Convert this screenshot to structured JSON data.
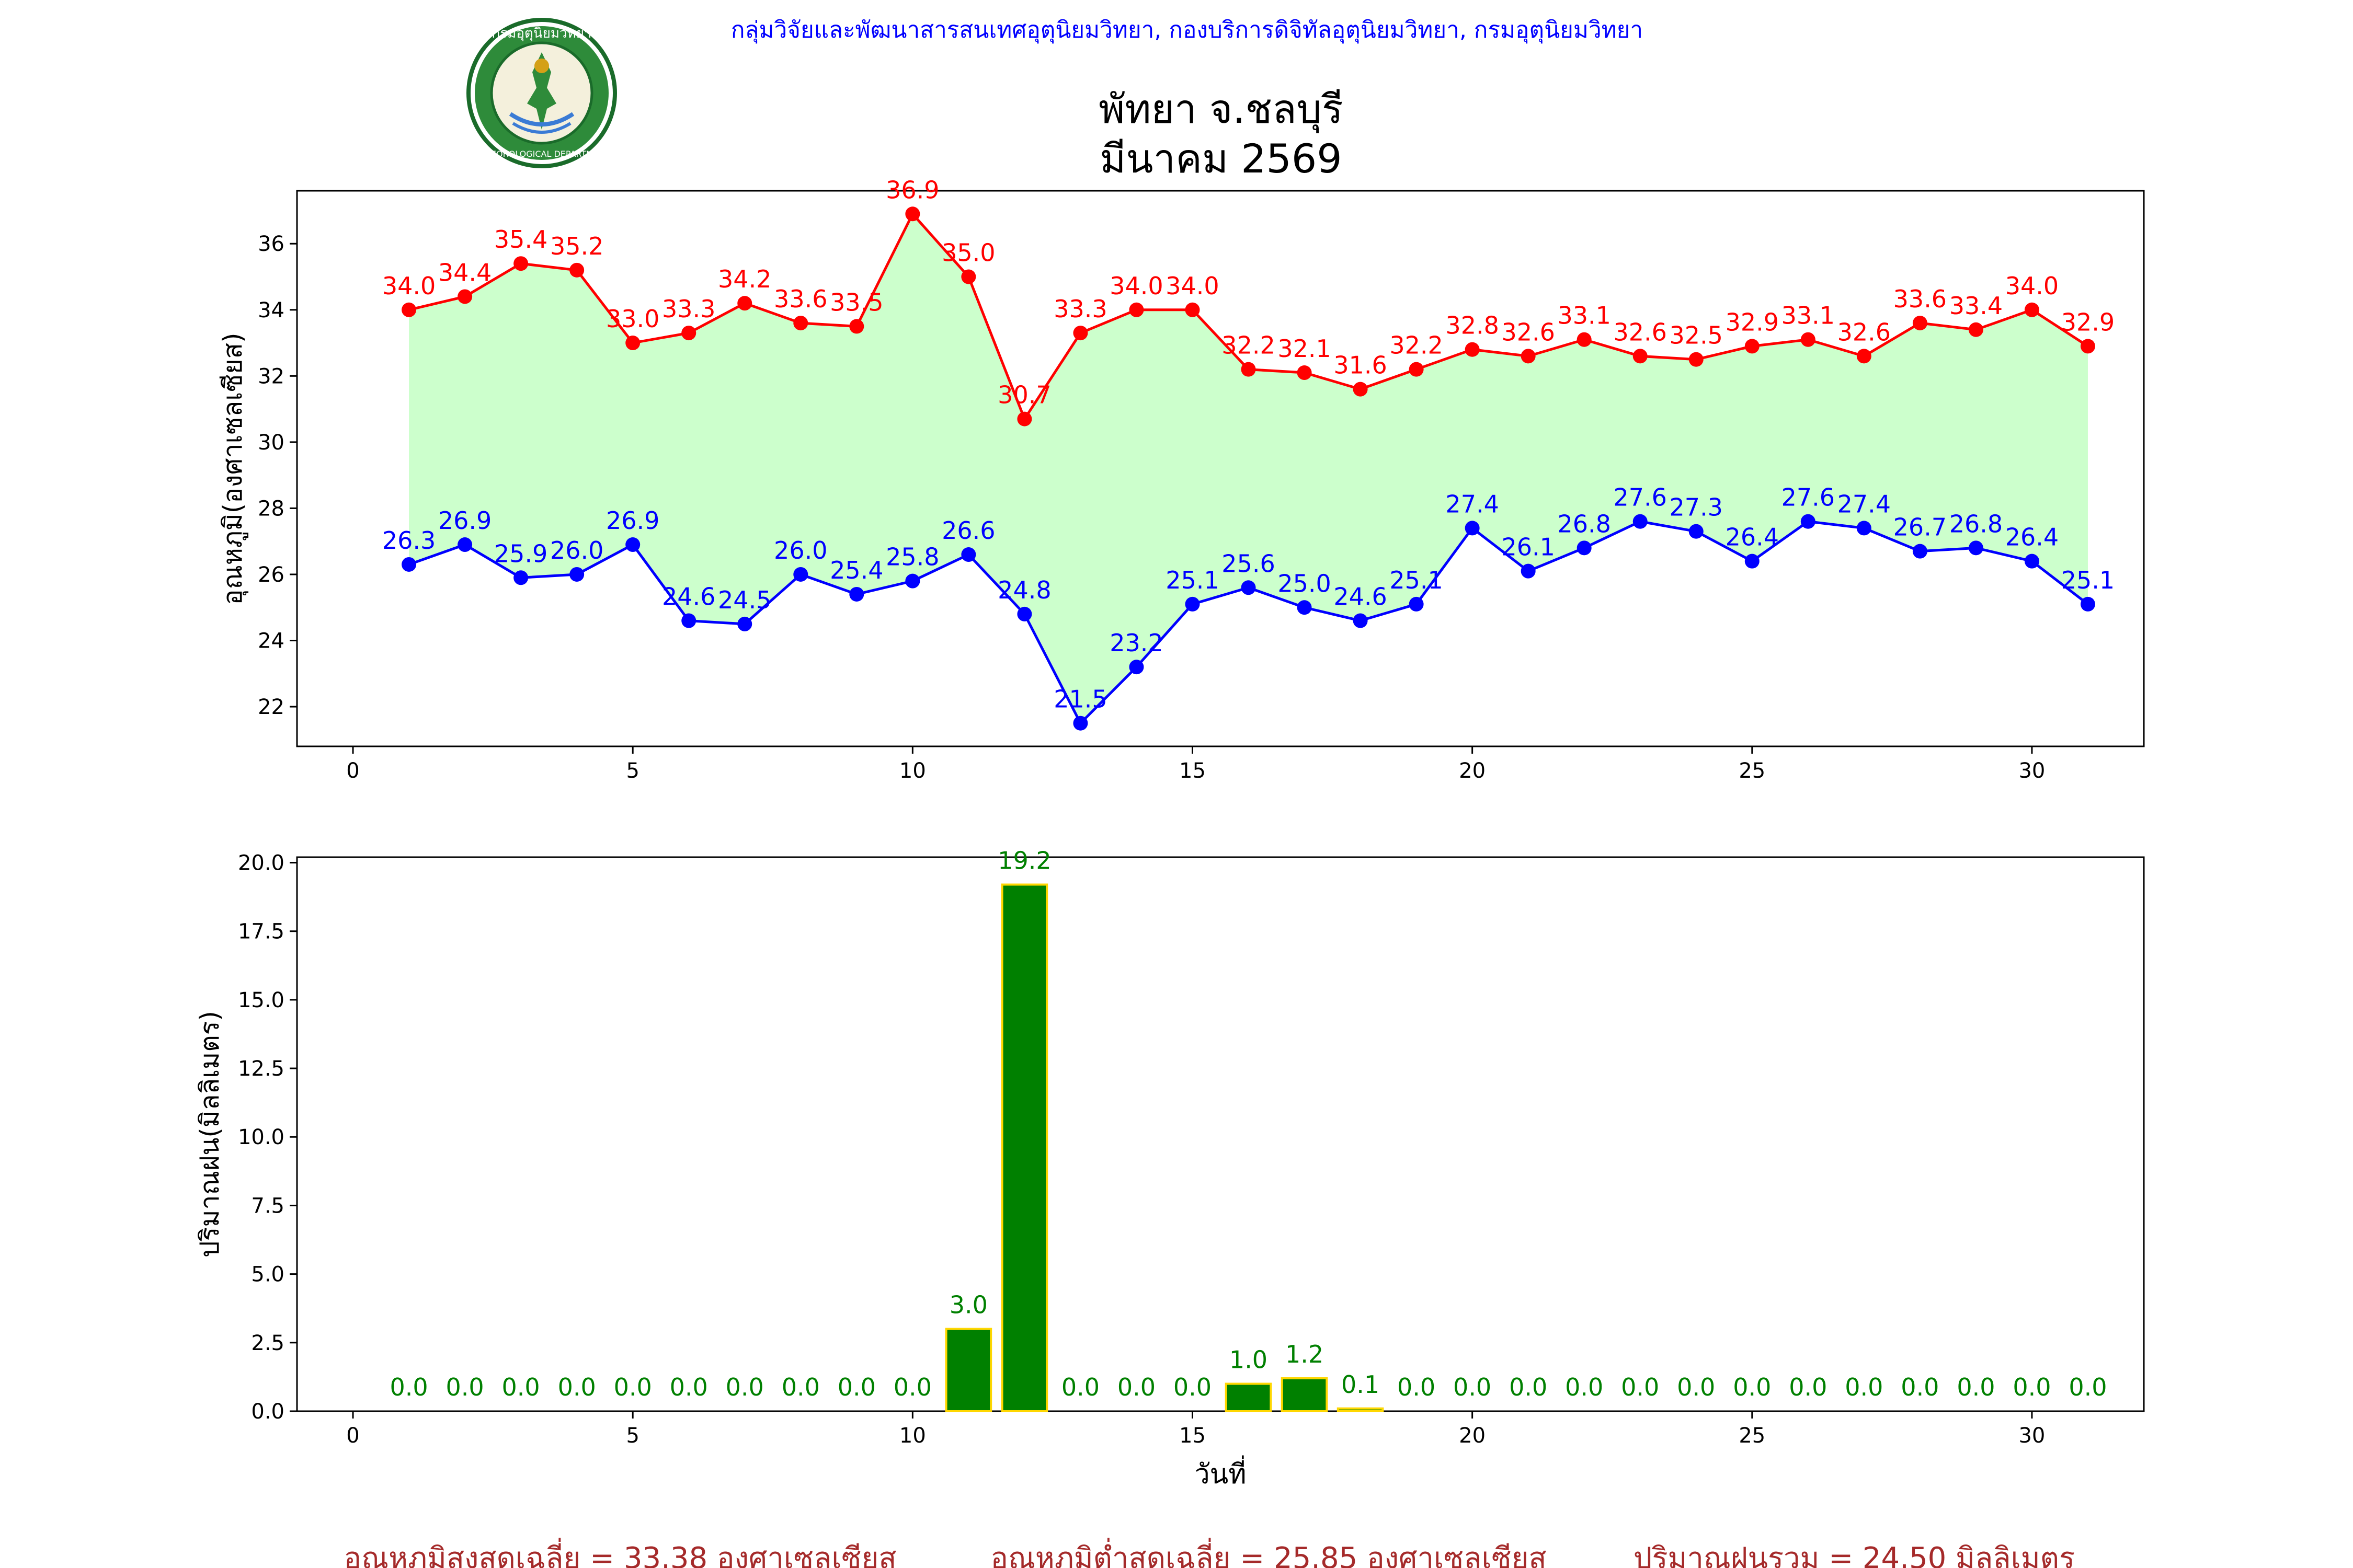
{
  "header": {
    "agency_line": "กลุ่มวิจัยและพัฒนาสารสนเทศอุตุนิยมวิทยา, กองบริการดิจิทัลอุตุนิยมวิทยา, กรมอุตุนิยมวิทยา",
    "title_line1": "พัทยา จ.ชลบุรี",
    "title_line2": "มีนาคม 2569",
    "logo_text_top": "กรมอุตุนิยมวิทยา",
    "logo_text_bottom": "METEOROLOGICAL DEPARTMENT"
  },
  "colors": {
    "agency_text": "#0000ff",
    "max_temp": "#ff0000",
    "min_temp": "#0000ff",
    "fill": "#ccffcc",
    "rain_bar": "#008000",
    "rain_edge": "#ffd700",
    "rain_label": "#008000",
    "summary_text": "#a52a2a"
  },
  "chart_data": [
    {
      "type": "line",
      "ylabel": "อุณหภูมิ(องศาเซลเซียส)",
      "xlim": [
        -1,
        32
      ],
      "ylim": [
        20.8,
        37.6
      ],
      "xticks": [
        0,
        5,
        10,
        15,
        20,
        25,
        30
      ],
      "yticks": [
        22,
        24,
        26,
        28,
        30,
        32,
        34,
        36
      ],
      "grid": false,
      "fill_between": true,
      "x": [
        1,
        2,
        3,
        4,
        5,
        6,
        7,
        8,
        9,
        10,
        11,
        12,
        13,
        14,
        15,
        16,
        17,
        18,
        19,
        20,
        21,
        22,
        23,
        24,
        25,
        26,
        27,
        28,
        29,
        30,
        31
      ],
      "series": [
        {
          "values": [
            34.0,
            34.4,
            35.4,
            35.2,
            33.0,
            33.3,
            34.2,
            33.6,
            33.5,
            36.9,
            35.0,
            30.7,
            33.3,
            34.0,
            34.0,
            32.2,
            32.1,
            31.6,
            32.2,
            32.8,
            32.6,
            33.1,
            32.6,
            32.5,
            32.9,
            33.1,
            32.6,
            33.6,
            33.4,
            34.0,
            32.9
          ]
        },
        {
          "values": [
            26.3,
            26.9,
            25.9,
            26.0,
            26.9,
            24.6,
            24.5,
            26.0,
            25.4,
            25.8,
            26.6,
            24.8,
            21.5,
            23.2,
            25.1,
            25.6,
            25.0,
            24.6,
            25.1,
            27.4,
            26.1,
            26.8,
            27.6,
            27.3,
            26.4,
            27.6,
            27.4,
            26.7,
            26.8,
            26.4,
            25.1
          ]
        }
      ]
    },
    {
      "type": "bar",
      "xlabel": "วันที่",
      "ylabel": "ปริมาณฝน(มิลลิเมตร)",
      "xlim": [
        -1,
        32
      ],
      "ylim": [
        0,
        20.2
      ],
      "xticks": [
        0,
        5,
        10,
        15,
        20,
        25,
        30
      ],
      "yticks": [
        0.0,
        2.5,
        5.0,
        7.5,
        10.0,
        12.5,
        15.0,
        17.5,
        20.0
      ],
      "grid": false,
      "x": [
        1,
        2,
        3,
        4,
        5,
        6,
        7,
        8,
        9,
        10,
        11,
        12,
        13,
        14,
        15,
        16,
        17,
        18,
        19,
        20,
        21,
        22,
        23,
        24,
        25,
        26,
        27,
        28,
        29,
        30,
        31
      ],
      "values": [
        0.0,
        0.0,
        0.0,
        0.0,
        0.0,
        0.0,
        0.0,
        0.0,
        0.0,
        0.0,
        3.0,
        19.2,
        0.0,
        0.0,
        0.0,
        1.0,
        1.2,
        0.1,
        0.0,
        0.0,
        0.0,
        0.0,
        0.0,
        0.0,
        0.0,
        0.0,
        0.0,
        0.0,
        0.0,
        0.0,
        0.0
      ]
    }
  ],
  "summary": {
    "avg_max": "อุณหภูมิสูงสุดเฉลี่ย = 33.38 องศาเซลเซียส",
    "avg_min": "อุณหภูมิต่ำสุดเฉลี่ย = 25.85 องศาเซลเซียส",
    "total_rain": "ปริมาณฝนรวม = 24.50 มิลลิเมตร"
  }
}
